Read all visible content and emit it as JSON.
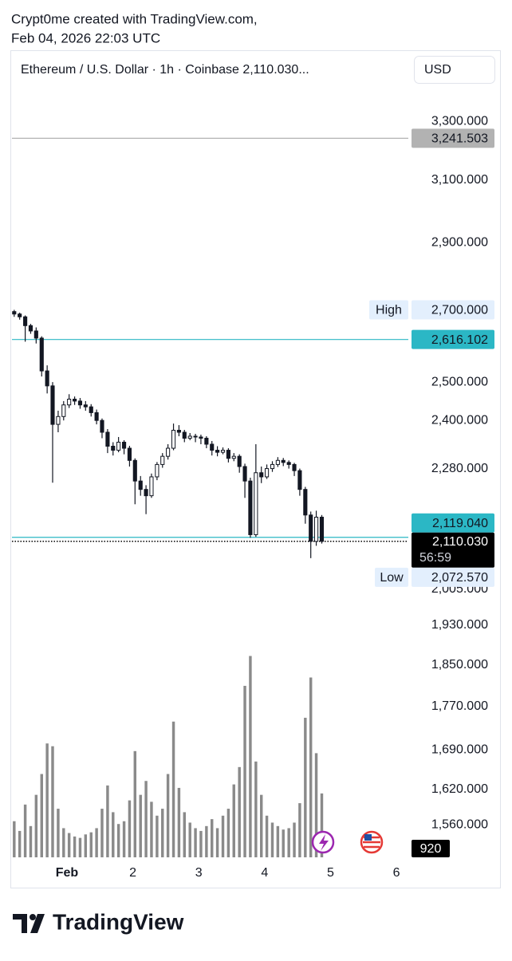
{
  "header": {
    "author_line": "Crypt0me created with TradingView.com,",
    "date_line": "Feb 04, 2026 22:03 UTC"
  },
  "brand": "TradingView",
  "chart_data": {
    "type": "candlestick",
    "title": "Ethereum / U.S. Dollar · 1h · Coinbase  2,110.030...",
    "currency": "USD",
    "log_scale": true,
    "color": "#131722",
    "volume_color": "#8a8a8a",
    "xlim": [
      0.166,
      6.18
    ],
    "xticks": [
      {
        "value": 1,
        "label": "Feb"
      },
      2,
      3,
      4,
      5,
      6
    ],
    "ylim": [
      1507,
      3554
    ],
    "yticks": [
      {
        "value": 3300,
        "label": "3,300.000"
      },
      {
        "value": 3100,
        "label": "3,100.000"
      },
      {
        "value": 2900,
        "label": "2,900.000"
      },
      {
        "value": 2500,
        "label": "2,500.000"
      },
      {
        "value": 2400,
        "label": "2,400.000"
      },
      {
        "value": 2280,
        "label": "2,280.000"
      },
      {
        "value": 2005,
        "label": "2,005.000"
      },
      {
        "value": 1930,
        "label": "1,930.000"
      },
      {
        "value": 1850,
        "label": "1,850.000"
      },
      {
        "value": 1770,
        "label": "1,770.000"
      },
      {
        "value": 1690,
        "label": "1,690.000"
      },
      {
        "value": 1620,
        "label": "1,620.000"
      },
      {
        "value": 1560,
        "label": "1,560.000"
      }
    ],
    "volume_ylim": [
      0,
      3400
    ],
    "x": [
      0.2,
      0.283,
      0.367,
      0.45,
      0.533,
      0.617,
      0.7,
      0.783,
      0.867,
      0.95,
      1.033,
      1.117,
      1.2,
      1.283,
      1.367,
      1.45,
      1.533,
      1.617,
      1.7,
      1.783,
      1.867,
      1.95,
      2.033,
      2.117,
      2.2,
      2.283,
      2.367,
      2.45,
      2.533,
      2.617,
      2.7,
      2.783,
      2.867,
      2.95,
      3.033,
      3.117,
      3.2,
      3.283,
      3.367,
      3.45,
      3.533,
      3.617,
      3.7,
      3.783,
      3.867,
      3.95,
      4.033,
      4.117,
      4.2,
      4.283,
      4.367,
      4.45,
      4.533,
      4.617,
      4.7,
      4.783,
      4.867
    ],
    "candles": [
      [
        2695,
        2700,
        2680,
        2688
      ],
      [
        2688,
        2692,
        2672,
        2680
      ],
      [
        2680,
        2684,
        2610,
        2655
      ],
      [
        2655,
        2660,
        2632,
        2640
      ],
      [
        2640,
        2650,
        2605,
        2620
      ],
      [
        2620,
        2625,
        2515,
        2530
      ],
      [
        2530,
        2545,
        2470,
        2490
      ],
      [
        2490,
        2500,
        2246,
        2390
      ],
      [
        2390,
        2425,
        2370,
        2410
      ],
      [
        2410,
        2450,
        2400,
        2440
      ],
      [
        2440,
        2468,
        2432,
        2455
      ],
      [
        2455,
        2462,
        2440,
        2450
      ],
      [
        2450,
        2458,
        2430,
        2440
      ],
      [
        2440,
        2450,
        2425,
        2435
      ],
      [
        2435,
        2442,
        2410,
        2420
      ],
      [
        2420,
        2428,
        2390,
        2400
      ],
      [
        2400,
        2405,
        2355,
        2370
      ],
      [
        2370,
        2378,
        2318,
        2335
      ],
      [
        2335,
        2345,
        2312,
        2325
      ],
      [
        2325,
        2358,
        2320,
        2345
      ],
      [
        2345,
        2350,
        2315,
        2330
      ],
      [
        2330,
        2336,
        2285,
        2300
      ],
      [
        2300,
        2305,
        2195,
        2250
      ],
      [
        2250,
        2262,
        2215,
        2230
      ],
      [
        2230,
        2240,
        2172,
        2215
      ],
      [
        2215,
        2268,
        2210,
        2260
      ],
      [
        2260,
        2296,
        2252,
        2290
      ],
      [
        2290,
        2318,
        2282,
        2310
      ],
      [
        2310,
        2340,
        2302,
        2330
      ],
      [
        2330,
        2392,
        2325,
        2375
      ],
      [
        2375,
        2388,
        2360,
        2370
      ],
      [
        2370,
        2376,
        2345,
        2355
      ],
      [
        2355,
        2368,
        2350,
        2360
      ],
      [
        2360,
        2366,
        2345,
        2358
      ],
      [
        2358,
        2364,
        2340,
        2355
      ],
      [
        2355,
        2360,
        2330,
        2340
      ],
      [
        2340,
        2348,
        2312,
        2325
      ],
      [
        2325,
        2335,
        2310,
        2320
      ],
      [
        2320,
        2332,
        2315,
        2325
      ],
      [
        2325,
        2330,
        2295,
        2305
      ],
      [
        2305,
        2318,
        2298,
        2310
      ],
      [
        2310,
        2315,
        2270,
        2285
      ],
      [
        2285,
        2292,
        2210,
        2250
      ],
      [
        2250,
        2258,
        2118,
        2125
      ],
      [
        2125,
        2340,
        2120,
        2270
      ],
      [
        2270,
        2285,
        2245,
        2260
      ],
      [
        2260,
        2290,
        2255,
        2280
      ],
      [
        2280,
        2298,
        2272,
        2290
      ],
      [
        2290,
        2308,
        2284,
        2300
      ],
      [
        2300,
        2306,
        2286,
        2295
      ],
      [
        2295,
        2300,
        2280,
        2290
      ],
      [
        2290,
        2294,
        2262,
        2275
      ],
      [
        2275,
        2280,
        2215,
        2230
      ],
      [
        2230,
        2236,
        2150,
        2170
      ],
      [
        2170,
        2178,
        2072.57,
        2110
      ],
      [
        2110,
        2180,
        2100,
        2165
      ],
      [
        2165,
        2170,
        2105,
        2110.03
      ]
    ],
    "volume": [
      520,
      380,
      760,
      450,
      900,
      1200,
      1640,
      1600,
      700,
      420,
      350,
      300,
      280,
      330,
      360,
      420,
      700,
      1035,
      650,
      480,
      520,
      820,
      1530,
      900,
      1100,
      800,
      600,
      700,
      1200,
      1955,
      1000,
      650,
      500,
      420,
      380,
      450,
      550,
      420,
      600,
      700,
      1050,
      1300,
      2470,
      2900,
      1380,
      900,
      600,
      500,
      450,
      400,
      420,
      500,
      780,
      2010,
      2590,
      1500,
      920
    ],
    "price_lines": [
      {
        "value": 3241.503,
        "label": "3,241.503",
        "color": "#b2b2b2"
      },
      {
        "value": 2616.102,
        "label": "2,616.102",
        "color": "#2bb7c5"
      },
      {
        "value": 2119.04,
        "label": "2,119.040",
        "color": "#2bb7c5"
      },
      {
        "value": 2110.03,
        "label": "2,110.030",
        "color": "#000000"
      }
    ],
    "countdown": "56:59",
    "extremes": [
      {
        "name": "High",
        "value": 2700,
        "label": "2,700.000"
      },
      {
        "name": "Low",
        "value": 2072.57,
        "label": "2,072.570"
      }
    ]
  }
}
